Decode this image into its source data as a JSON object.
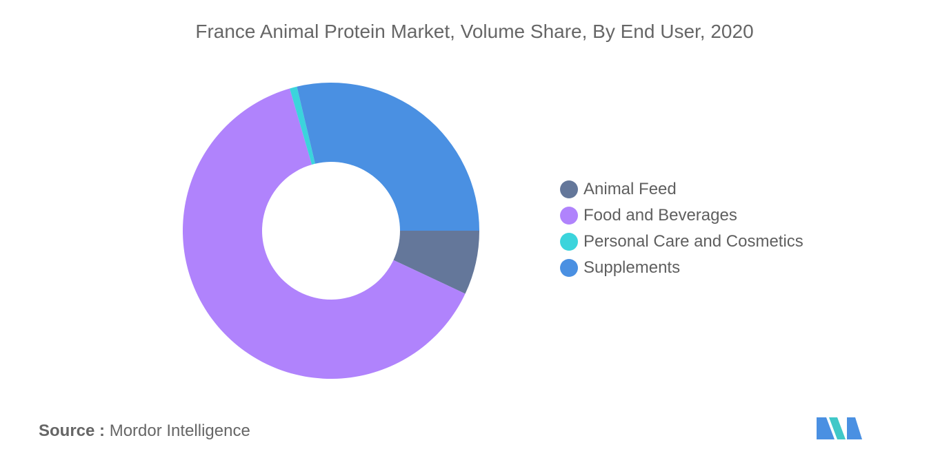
{
  "chart_data": {
    "type": "pie",
    "title": "France Animal Protein Market, Volume Share, By End User, 2020",
    "categories": [
      "Animal Feed",
      "Food and Beverages",
      "Personal Care and Cosmetics",
      "Supplements"
    ],
    "values": [
      7,
      63.5,
      0.8,
      28.7
    ],
    "colors": [
      "#64779a",
      "#b083fc",
      "#3bd4dc",
      "#4a90e2"
    ],
    "donut": true,
    "legend_position": "right"
  },
  "source": {
    "label": "Source :",
    "text": "Mordor Intelligence"
  },
  "logo": {
    "icon": "mordor-intelligence-logo-icon",
    "colors": [
      "#4a90e2",
      "#40c8c8"
    ]
  }
}
